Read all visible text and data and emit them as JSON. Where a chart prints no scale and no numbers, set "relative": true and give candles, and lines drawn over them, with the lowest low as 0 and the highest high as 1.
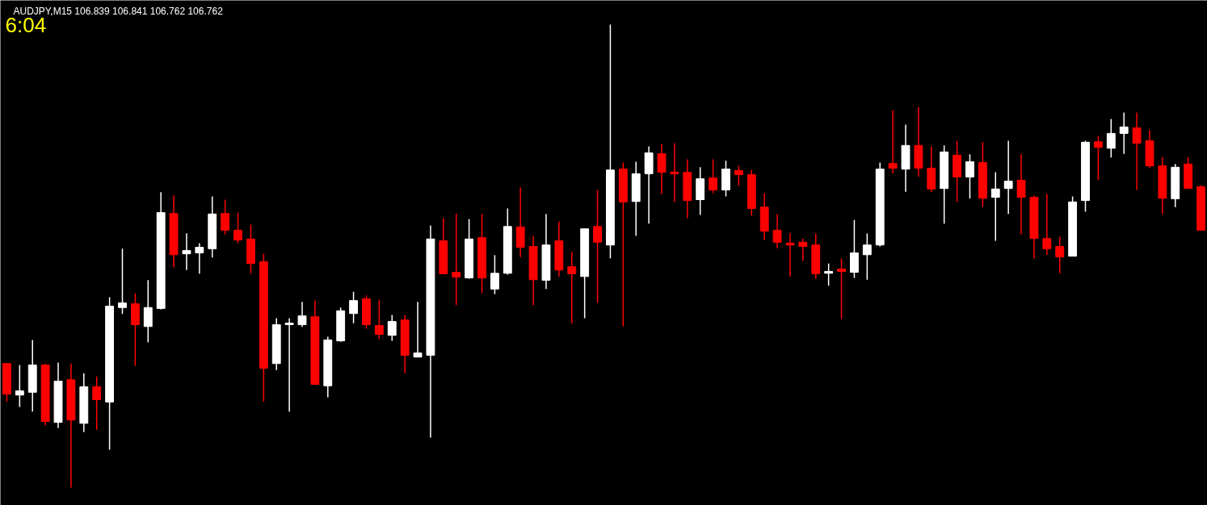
{
  "chart_data": {
    "type": "candlestick",
    "title": "AUDJPY,M15  106.839 106.841 106.762 106.762",
    "annotations": [
      "6:04"
    ],
    "relative": true,
    "categories": [
      null,
      null,
      null,
      null,
      null,
      null,
      null,
      null,
      null,
      null,
      null,
      null,
      null,
      null,
      null,
      null,
      null,
      null,
      null,
      null,
      null,
      null,
      null,
      null,
      null,
      null,
      null,
      null,
      null,
      null,
      null,
      null,
      null,
      null,
      null,
      null,
      null,
      null,
      null,
      null,
      null,
      null,
      null,
      null,
      null,
      null,
      null,
      null,
      null,
      null,
      null,
      null,
      null,
      null,
      null,
      null,
      null,
      null,
      null,
      null,
      null,
      null,
      null,
      null,
      null,
      null,
      null,
      null,
      null,
      null,
      null,
      null,
      null,
      null,
      null,
      null,
      null,
      null,
      null,
      null,
      null,
      null,
      null,
      null,
      null,
      null,
      null,
      null,
      null,
      null,
      null,
      null,
      null,
      null
    ],
    "ohlc": [
      [
        0.268,
        0.268,
        0.186,
        0.202
      ],
      [
        0.2,
        0.265,
        0.174,
        0.209
      ],
      [
        0.206,
        0.319,
        0.164,
        0.265
      ],
      [
        0.265,
        0.268,
        0.134,
        0.143
      ],
      [
        0.141,
        0.27,
        0.129,
        0.23
      ],
      [
        0.233,
        0.268,
        0.0,
        0.146
      ],
      [
        0.139,
        0.247,
        0.12,
        0.218
      ],
      [
        0.218,
        0.24,
        0.125,
        0.19
      ],
      [
        0.185,
        0.411,
        0.082,
        0.392
      ],
      [
        0.389,
        0.516,
        0.375,
        0.399
      ],
      [
        0.397,
        0.42,
        0.263,
        0.352
      ],
      [
        0.348,
        0.448,
        0.314,
        0.389
      ],
      [
        0.387,
        0.638,
        0.385,
        0.594
      ],
      [
        0.592,
        0.631,
        0.476,
        0.503
      ],
      [
        0.505,
        0.549,
        0.47,
        0.512
      ],
      [
        0.507,
        0.528,
        0.462,
        0.519
      ],
      [
        0.516,
        0.629,
        0.497,
        0.591
      ],
      [
        0.592,
        0.622,
        0.547,
        0.556
      ],
      [
        0.556,
        0.594,
        0.528,
        0.535
      ],
      [
        0.537,
        0.568,
        0.462,
        0.484
      ],
      [
        0.488,
        0.505,
        0.186,
        0.258
      ],
      [
        0.268,
        0.366,
        0.254,
        0.352
      ],
      [
        0.352,
        0.366,
        0.164,
        0.355
      ],
      [
        0.352,
        0.401,
        0.347,
        0.371
      ],
      [
        0.369,
        0.404,
        0.223,
        0.223
      ],
      [
        0.22,
        0.326,
        0.195,
        0.319
      ],
      [
        0.317,
        0.389,
        0.315,
        0.382
      ],
      [
        0.376,
        0.423,
        0.355,
        0.404
      ],
      [
        0.408,
        0.415,
        0.343,
        0.352
      ],
      [
        0.35,
        0.406,
        0.321,
        0.331
      ],
      [
        0.329,
        0.373,
        0.317,
        0.359
      ],
      [
        0.362,
        0.373,
        0.247,
        0.286
      ],
      [
        0.282,
        0.401,
        0.282,
        0.291
      ],
      [
        0.286,
        0.566,
        0.108,
        0.537
      ],
      [
        0.533,
        0.582,
        0.462,
        0.462
      ],
      [
        0.465,
        0.592,
        0.394,
        0.455
      ],
      [
        0.453,
        0.58,
        0.451,
        0.537
      ],
      [
        0.54,
        0.591,
        0.42,
        0.453
      ],
      [
        0.429,
        0.502,
        0.418,
        0.463
      ],
      [
        0.463,
        0.603,
        0.46,
        0.564
      ],
      [
        0.563,
        0.648,
        0.498,
        0.519
      ],
      [
        0.521,
        0.544,
        0.394,
        0.449
      ],
      [
        0.448,
        0.591,
        0.429,
        0.524
      ],
      [
        0.533,
        0.575,
        0.456,
        0.47
      ],
      [
        0.477,
        0.509,
        0.355,
        0.462
      ],
      [
        0.456,
        0.559,
        0.366,
        0.559
      ],
      [
        0.564,
        0.643,
        0.399,
        0.53
      ],
      [
        0.524,
        1.0,
        0.495,
        0.686
      ],
      [
        0.688,
        0.702,
        0.348,
        0.617
      ],
      [
        0.618,
        0.704,
        0.544,
        0.678
      ],
      [
        0.678,
        0.737,
        0.57,
        0.723
      ],
      [
        0.721,
        0.742,
        0.634,
        0.681
      ],
      [
        0.681,
        0.744,
        0.617,
        0.678
      ],
      [
        0.681,
        0.709,
        0.582,
        0.62
      ],
      [
        0.622,
        0.692,
        0.589,
        0.667
      ],
      [
        0.669,
        0.709,
        0.636,
        0.643
      ],
      [
        0.643,
        0.706,
        0.629,
        0.688
      ],
      [
        0.685,
        0.695,
        0.652,
        0.676
      ],
      [
        0.676,
        0.686,
        0.587,
        0.603
      ],
      [
        0.606,
        0.636,
        0.535,
        0.554
      ],
      [
        0.556,
        0.591,
        0.517,
        0.53
      ],
      [
        0.528,
        0.549,
        0.456,
        0.524
      ],
      [
        0.53,
        0.538,
        0.49,
        0.521
      ],
      [
        0.524,
        0.549,
        0.451,
        0.462
      ],
      [
        0.463,
        0.484,
        0.436,
        0.467
      ],
      [
        0.472,
        0.495,
        0.364,
        0.467
      ],
      [
        0.465,
        0.578,
        0.453,
        0.507
      ],
      [
        0.503,
        0.549,
        0.449,
        0.524
      ],
      [
        0.524,
        0.702,
        0.521,
        0.688
      ],
      [
        0.7,
        0.815,
        0.679,
        0.69
      ],
      [
        0.688,
        0.784,
        0.639,
        0.739
      ],
      [
        0.739,
        0.822,
        0.671,
        0.69
      ],
      [
        0.69,
        0.737,
        0.638,
        0.645
      ],
      [
        0.646,
        0.739,
        0.57,
        0.725
      ],
      [
        0.718,
        0.749,
        0.617,
        0.671
      ],
      [
        0.671,
        0.72,
        0.624,
        0.704
      ],
      [
        0.702,
        0.746,
        0.606,
        0.625
      ],
      [
        0.627,
        0.681,
        0.533,
        0.645
      ],
      [
        0.646,
        0.749,
        0.591,
        0.662
      ],
      [
        0.664,
        0.72,
        0.547,
        0.627
      ],
      [
        0.627,
        0.631,
        0.495,
        0.538
      ],
      [
        0.538,
        0.634,
        0.503,
        0.516
      ],
      [
        0.521,
        0.542,
        0.463,
        0.498
      ],
      [
        0.5,
        0.629,
        0.5,
        0.617
      ],
      [
        0.62,
        0.749,
        0.596,
        0.746
      ],
      [
        0.747,
        0.76,
        0.664,
        0.735
      ],
      [
        0.733,
        0.796,
        0.713,
        0.765
      ],
      [
        0.765,
        0.81,
        0.721,
        0.779
      ],
      [
        0.777,
        0.81,
        0.643,
        0.744
      ],
      [
        0.749,
        0.772,
        0.69,
        0.695
      ],
      [
        0.695,
        0.714,
        0.591,
        0.625
      ],
      [
        0.624,
        0.699,
        0.606,
        0.692
      ],
      [
        0.699,
        0.714,
        0.646,
        0.646
      ],
      [
        0.65,
        0.653,
        0.556,
        0.556
      ]
    ],
    "colors": [
      "#ff0000",
      "#ffffff",
      "#ffffff",
      "#ff0000",
      "#ffffff",
      "#ff0000",
      "#ffffff",
      "#ff0000",
      "#ffffff",
      "#ffffff",
      "#ff0000",
      "#ffffff",
      "#ffffff",
      "#ff0000",
      "#ffffff",
      "#ffffff",
      "#ffffff",
      "#ff0000",
      "#ff0000",
      "#ff0000",
      "#ff0000",
      "#ffffff",
      "#ffffff",
      "#ffffff",
      "#ff0000",
      "#ffffff",
      "#ffffff",
      "#ffffff",
      "#ff0000",
      "#ff0000",
      "#ffffff",
      "#ff0000",
      "#ffffff",
      "#ffffff",
      "#ff0000",
      "#ff0000",
      "#ffffff",
      "#ff0000",
      "#ffffff",
      "#ffffff",
      "#ff0000",
      "#ff0000",
      "#ffffff",
      "#ff0000",
      "#ff0000",
      "#ffffff",
      "#ff0000",
      "#ffffff",
      "#ff0000",
      "#ffffff",
      "#ffffff",
      "#ff0000",
      "#ff0000",
      "#ff0000",
      "#ffffff",
      "#ff0000",
      "#ffffff",
      "#ff0000",
      "#ff0000",
      "#ff0000",
      "#ff0000",
      "#ff0000",
      "#ff0000",
      "#ff0000",
      "#ffffff",
      "#ff0000",
      "#ffffff",
      "#ffffff",
      "#ffffff",
      "#ff0000",
      "#ffffff",
      "#ff0000",
      "#ff0000",
      "#ffffff",
      "#ff0000",
      "#ffffff",
      "#ff0000",
      "#ffffff",
      "#ffffff",
      "#ff0000",
      "#ff0000",
      "#ff0000",
      "#ff0000",
      "#ffffff",
      "#ffffff",
      "#ff0000",
      "#ffffff",
      "#ffffff",
      "#ff0000",
      "#ff0000",
      "#ff0000",
      "#ffffff",
      "#ff0000",
      "#ff0000"
    ]
  }
}
